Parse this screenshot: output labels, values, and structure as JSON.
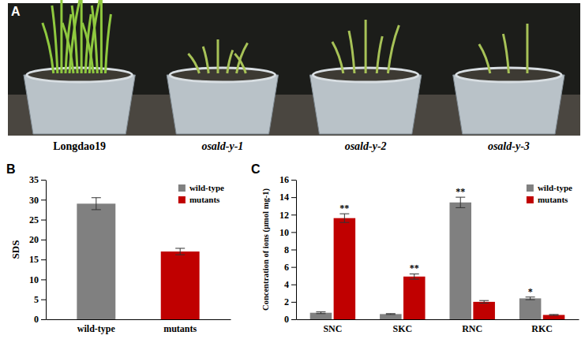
{
  "photo_panel": {
    "letter": "A",
    "labels": [
      "Longdao19",
      "osald-y-1",
      "osald-y-2",
      "osald-y-3"
    ]
  },
  "chart_data": [
    {
      "type": "bar",
      "panel_label": "B",
      "y_label": "SDS",
      "categories": [
        "wild-type",
        "mutants"
      ],
      "series": [
        {
          "name": "wild-type",
          "color": "#808080",
          "values": [
            29,
            null
          ],
          "errors": [
            1.5,
            null
          ]
        },
        {
          "name": "mutants",
          "color": "#c00000",
          "values": [
            null,
            17
          ],
          "errors": [
            null,
            0.8
          ]
        }
      ],
      "ylim": [
        0,
        35
      ],
      "yticks": [
        0,
        5,
        10,
        15,
        20,
        25,
        30,
        35
      ],
      "legend": "upper right",
      "grid": false
    },
    {
      "type": "bar",
      "panel_label": "C",
      "y_label": "Concentration of ions (µmol mg-1)",
      "categories": [
        "SNC",
        "SKC",
        "RNC",
        "RKC"
      ],
      "series": [
        {
          "name": "wild-type",
          "color": "#808080",
          "values": [
            0.75,
            0.6,
            13.4,
            2.4
          ],
          "errors": [
            0.1,
            0.05,
            0.6,
            0.15
          ],
          "significance": [
            null,
            null,
            "**",
            "*"
          ]
        },
        {
          "name": "mutants",
          "color": "#c00000",
          "values": [
            11.6,
            4.9,
            2.0,
            0.5
          ],
          "errors": [
            0.5,
            0.3,
            0.15,
            0.05
          ],
          "significance": [
            "**",
            "**",
            null,
            null
          ]
        }
      ],
      "ylim": [
        0,
        16
      ],
      "yticks": [
        0,
        2,
        4,
        6,
        8,
        10,
        12,
        14,
        16
      ],
      "legend": "upper right",
      "grid": false
    }
  ]
}
